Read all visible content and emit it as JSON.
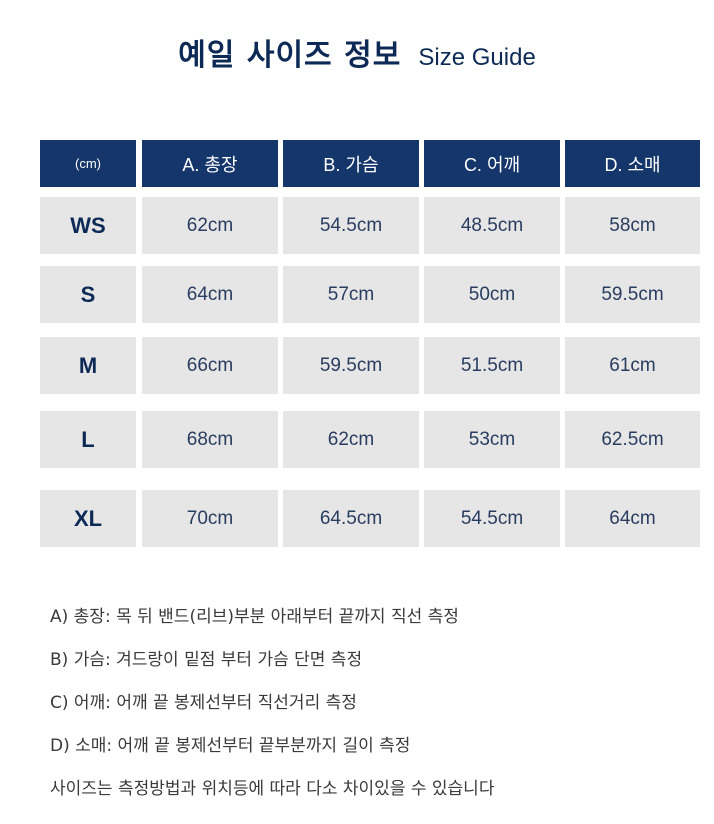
{
  "title": {
    "ko": "예일 사이즈 정보",
    "en": "Size Guide"
  },
  "table": {
    "unit": "(cm)",
    "headers": [
      "A. 총장",
      "B. 가슴",
      "C. 어깨",
      "D. 소매"
    ],
    "rows": [
      {
        "size": "WS",
        "values": [
          "62cm",
          "54.5cm",
          "48.5cm",
          "58cm"
        ]
      },
      {
        "size": "S",
        "values": [
          "64cm",
          "57cm",
          "50cm",
          "59.5cm"
        ]
      },
      {
        "size": "M",
        "values": [
          "66cm",
          "59.5cm",
          "51.5cm",
          "61cm"
        ]
      },
      {
        "size": "L",
        "values": [
          "68cm",
          "62cm",
          "53cm",
          "62.5cm"
        ]
      },
      {
        "size": "XL",
        "values": [
          "70cm",
          "64.5cm",
          "54.5cm",
          "64cm"
        ]
      }
    ]
  },
  "notes": [
    "A) 총장: 목 뒤 밴드(리브)부분 아래부터 끝까지 직선 측정",
    "B) 가슴: 겨드랑이 밑점 부터 가슴 단면 측정",
    "C) 어깨: 어깨 끝 봉제선부터 직선거리 측정",
    "D) 소매: 어깨 끝 봉제선부터 끝부분까지 길이 측정",
    "사이즈는 측정방법과 위치등에 따라 다소 차이있을 수 있습니다"
  ],
  "colors": {
    "header_bg": "#15366b",
    "cell_bg": "#e6e6e6",
    "title": "#0d2a57"
  }
}
